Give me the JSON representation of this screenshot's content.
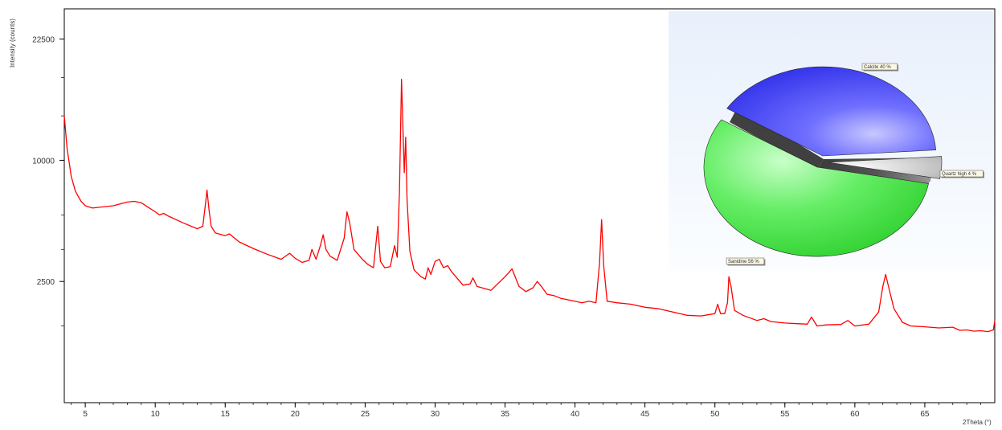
{
  "chart_data": [
    {
      "type": "line",
      "title": "",
      "xlabel": "2Theta (°)",
      "ylabel": "Intensity (counts)",
      "xlim": [
        3.5,
        70
      ],
      "ylim": [
        0,
        26400
      ],
      "y_scale": "sqrt",
      "grid": false,
      "legend": "none",
      "x_ticks": [
        5,
        10,
        15,
        20,
        25,
        30,
        35,
        40,
        45,
        50,
        55,
        60,
        65
      ],
      "y_ticks": [
        2500,
        10000,
        22500
      ],
      "series": [
        {
          "color": "#ff0000",
          "x": [
            3.5,
            3.7,
            4.0,
            4.3,
            4.7,
            5.0,
            5.5,
            6.0,
            7.0,
            8.0,
            8.5,
            9.0,
            9.5,
            10.0,
            10.3,
            10.6,
            11.0,
            12.0,
            13.0,
            13.4,
            13.6,
            13.7,
            13.85,
            14.0,
            14.3,
            15.0,
            15.3,
            16.0,
            17.0,
            18.0,
            19.0,
            19.6,
            20.0,
            20.5,
            21.0,
            21.2,
            21.5,
            21.8,
            22.0,
            22.2,
            22.5,
            23.0,
            23.5,
            23.7,
            23.9,
            24.2,
            24.8,
            25.2,
            25.6,
            25.9,
            26.1,
            26.4,
            26.8,
            27.1,
            27.3,
            27.45,
            27.6,
            27.7,
            27.8,
            27.9,
            28.0,
            28.2,
            28.5,
            29.0,
            29.3,
            29.5,
            29.7,
            30.0,
            30.3,
            30.6,
            30.9,
            31.2,
            32.0,
            32.5,
            32.7,
            33.0,
            34.0,
            35.0,
            35.3,
            35.5,
            36.0,
            36.5,
            37.0,
            37.3,
            37.6,
            38.0,
            38.5,
            39.0,
            40.0,
            40.5,
            41.0,
            41.5,
            41.75,
            41.9,
            42.05,
            42.3,
            43.0,
            44.0,
            45.0,
            46.0,
            47.0,
            47.5,
            48.0,
            49.0,
            50.0,
            50.2,
            50.4,
            50.7,
            50.9,
            51.0,
            51.15,
            51.4,
            52.0,
            53.0,
            53.5,
            54.0,
            55.0,
            56.0,
            56.6,
            56.9,
            57.3,
            58.0,
            59.0,
            59.5,
            60.0,
            61.0,
            61.7,
            62.0,
            62.2,
            62.4,
            62.8,
            63.4,
            64.0,
            65.0,
            66.0,
            67.0,
            67.5,
            68.0,
            68.5,
            69.0,
            69.5,
            69.9,
            70.0
          ],
          "y": [
            14000,
            11000,
            8700,
            7600,
            6900,
            6600,
            6450,
            6500,
            6600,
            6850,
            6900,
            6800,
            6500,
            6200,
            6000,
            6100,
            5900,
            5500,
            5150,
            5300,
            6800,
            7700,
            6300,
            5300,
            4900,
            4750,
            4850,
            4400,
            4050,
            3750,
            3500,
            3800,
            3550,
            3350,
            3450,
            4000,
            3500,
            4200,
            4800,
            4000,
            3650,
            3450,
            4600,
            6200,
            5500,
            4000,
            3500,
            3250,
            3100,
            5300,
            3400,
            3100,
            3150,
            4200,
            3600,
            7500,
            17800,
            13000,
            9000,
            12000,
            7000,
            3900,
            3000,
            2700,
            2600,
            3100,
            2800,
            3400,
            3500,
            3100,
            3200,
            2900,
            2350,
            2400,
            2650,
            2300,
            2150,
            2700,
            2900,
            3050,
            2300,
            2100,
            2250,
            2500,
            2300,
            2000,
            1950,
            1850,
            1750,
            1700,
            1750,
            1700,
            3300,
            5700,
            3200,
            1750,
            1700,
            1650,
            1550,
            1500,
            1400,
            1350,
            1300,
            1280,
            1350,
            1650,
            1350,
            1350,
            1700,
            2700,
            2300,
            1450,
            1300,
            1150,
            1200,
            1120,
            1080,
            1060,
            1050,
            1250,
            1000,
            1030,
            1040,
            1150,
            1000,
            1050,
            1400,
            2300,
            2800,
            2300,
            1500,
            1100,
            1000,
            980,
            950,
            970,
            890,
            900,
            870,
            880,
            860,
            900,
            1150
          ]
        }
      ]
    },
    {
      "type": "pie",
      "title": "",
      "legend": "none",
      "slices": [
        {
          "label": "Calcite 40 %",
          "value": 40,
          "color": "#4a4aff"
        },
        {
          "label": "Quartz high 4 %",
          "value": 4,
          "color": "#d8d8d8"
        },
        {
          "label": "Sanidine 56 %",
          "value": 56,
          "color": "#33dd33"
        }
      ]
    }
  ]
}
